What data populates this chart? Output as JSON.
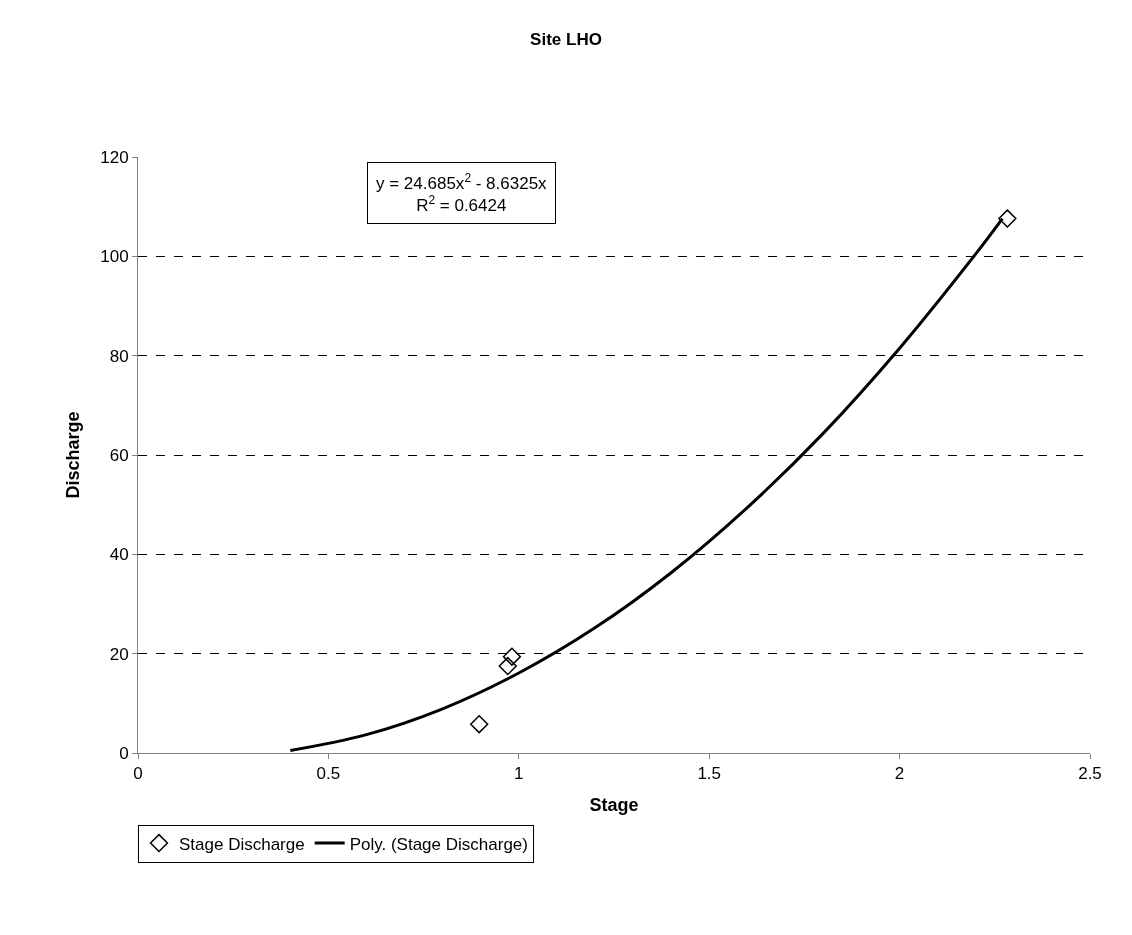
{
  "chart_data": {
    "type": "scatter",
    "title": "Site LHO",
    "xlabel": "Stage",
    "ylabel": "Discharge",
    "annotations": [
      "y = 24.685x$^{2}$ - 8.6325x",
      "R$^{2}$ = 0.6424"
    ],
    "series": [
      {
        "name": "Stage Discharge",
        "color": "#000000",
        "marker": "diamond",
        "x": [
          0.896,
          0.971,
          0.982,
          2.283
        ],
        "values": [
          5.8,
          17.5,
          19.4,
          107.6
        ]
      },
      {
        "name": "Poly. (Stage Discharge)",
        "type": "line",
        "color": "#000000",
        "marker": "none",
        "line_style": "solid",
        "x": [
          0.4,
          0.6,
          0.8,
          1.0,
          1.2,
          1.4,
          1.6,
          1.8,
          2.0,
          2.2,
          2.27
        ],
        "values": [
          0.5,
          3.7,
          8.9,
          16.1,
          25.2,
          36.3,
          49.4,
          64.4,
          81.5,
          100.5,
          107.6
        ]
      }
    ],
    "xlim": [
      0,
      2.5
    ],
    "xticks": [
      0,
      0.5,
      1,
      1.5,
      2,
      2.5
    ],
    "ylim": [
      0,
      120
    ],
    "yticks": [
      0,
      20,
      40,
      60,
      80,
      100,
      120
    ],
    "grid": "y",
    "legend": "bottom"
  }
}
